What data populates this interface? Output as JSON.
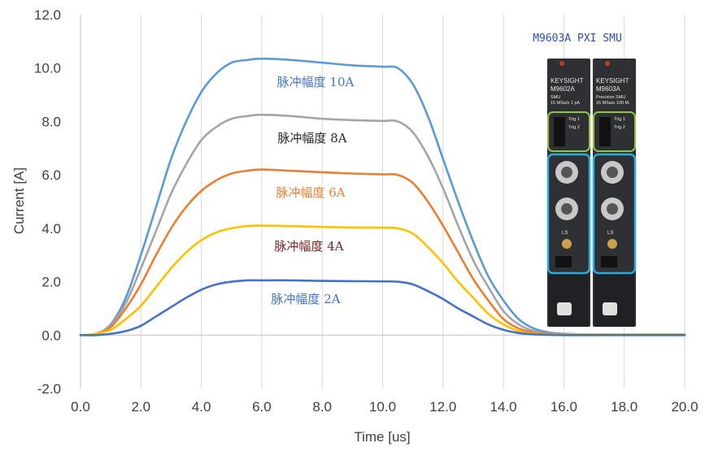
{
  "chart_data": {
    "type": "line",
    "xlabel": "Time [us]",
    "ylabel": "Current [A]",
    "xlim": [
      0,
      20
    ],
    "ylim": [
      -2,
      12
    ],
    "xticks": [
      "0.0",
      "2.0",
      "4.0",
      "6.0",
      "8.0",
      "10.0",
      "12.0",
      "14.0",
      "16.0",
      "18.0",
      "20.0"
    ],
    "yticks": [
      "-2.0",
      "0.0",
      "2.0",
      "4.0",
      "6.0",
      "8.0",
      "10.0",
      "12.0"
    ],
    "grid": "vertical",
    "x": [
      0,
      0.5,
      1.0,
      1.5,
      2.0,
      2.5,
      3.0,
      3.5,
      4.0,
      4.5,
      5.0,
      5.5,
      6.0,
      7.0,
      8.0,
      9.0,
      10.0,
      10.5,
      11.0,
      11.5,
      12.0,
      12.5,
      13.0,
      13.5,
      14.0,
      14.5,
      15.0,
      15.5,
      16.0,
      17.0,
      18.0,
      19.0,
      20.0
    ],
    "series": [
      {
        "name": "脉冲幅度 10A",
        "color": "#5b9bd5",
        "label_color": "#4472c4",
        "values": [
          0,
          0.05,
          0.4,
          1.4,
          3.0,
          4.8,
          6.6,
          8.0,
          9.1,
          9.8,
          10.2,
          10.3,
          10.35,
          10.3,
          10.2,
          10.1,
          10.05,
          10.0,
          9.4,
          8.2,
          6.6,
          5.0,
          3.5,
          2.2,
          1.3,
          0.6,
          0.25,
          0.1,
          0.05,
          0.02,
          0.02,
          0.02,
          0.02
        ]
      },
      {
        "name": "脉冲幅度 8A",
        "color": "#a5a5a5",
        "label_color": "#262626",
        "values": [
          0,
          0.05,
          0.35,
          1.2,
          2.5,
          3.9,
          5.3,
          6.4,
          7.3,
          7.8,
          8.1,
          8.2,
          8.25,
          8.2,
          8.1,
          8.05,
          8.02,
          8.0,
          7.6,
          6.7,
          5.5,
          4.1,
          2.8,
          1.8,
          0.9,
          0.4,
          0.15,
          0.05,
          0.02,
          0.02,
          0.02,
          0.02,
          0.02
        ]
      },
      {
        "name": "脉冲幅度 6A",
        "color": "#ed7d31",
        "label_color": "#ed7d31",
        "values": [
          0,
          0.05,
          0.3,
          1.0,
          1.9,
          3.0,
          4.0,
          4.8,
          5.4,
          5.8,
          6.05,
          6.15,
          6.2,
          6.15,
          6.1,
          6.05,
          6.02,
          6.0,
          5.7,
          5.0,
          4.1,
          3.1,
          2.1,
          1.3,
          0.6,
          0.25,
          0.1,
          0.05,
          0.02,
          0.02,
          0.02,
          0.02,
          0.02
        ]
      },
      {
        "name": "脉冲幅度 4A",
        "color": "#ffc000",
        "label_color": "#7b2222",
        "values": [
          0,
          0.05,
          0.2,
          0.6,
          1.1,
          1.8,
          2.5,
          3.1,
          3.55,
          3.85,
          4.0,
          4.08,
          4.1,
          4.08,
          4.05,
          4.03,
          4.02,
          4.0,
          3.8,
          3.3,
          2.7,
          2.0,
          1.4,
          0.8,
          0.4,
          0.15,
          0.05,
          0.02,
          0.02,
          0.02,
          0.02,
          0.02,
          0.02
        ]
      },
      {
        "name": "脉冲幅度 2A",
        "color": "#4472c4",
        "label_color": "#4472c4",
        "values": [
          0,
          0.0,
          0.05,
          0.15,
          0.35,
          0.7,
          1.05,
          1.4,
          1.7,
          1.9,
          2.0,
          2.05,
          2.05,
          2.05,
          2.03,
          2.02,
          2.01,
          2.0,
          1.9,
          1.65,
          1.35,
          1.0,
          0.7,
          0.4,
          0.2,
          0.08,
          0.03,
          0.01,
          0.0,
          0.0,
          0.0,
          0.0,
          0.0
        ]
      }
    ]
  },
  "module_image": {
    "title": "M9603A PXI SMU",
    "left": {
      "brand": "KEYSIGHT",
      "model": "M9602A",
      "sub1": "SMU",
      "sub2": "15 MSa/s 1 pA",
      "trig1": "Trig 1",
      "trig2": "Trig 2",
      "lo": "LS"
    },
    "right": {
      "brand": "KEYSIGHT",
      "model": "M9603A",
      "sub1": "Precision SMU",
      "sub2": "15 MSa/s 100 fA",
      "trig1": "Trig 1",
      "trig2": "Trig 2",
      "lo": "LS"
    }
  }
}
